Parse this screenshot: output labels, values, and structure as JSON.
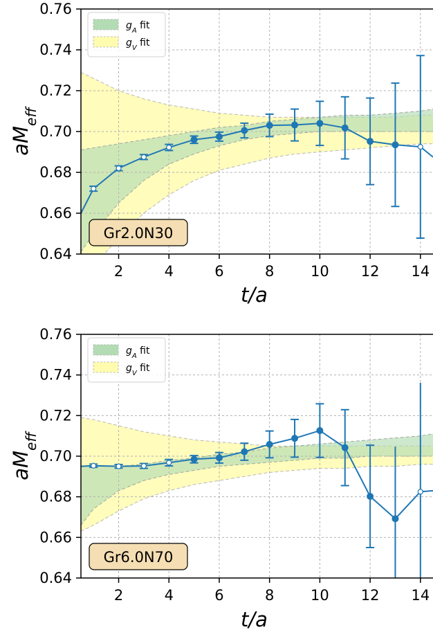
{
  "chart_data": [
    {
      "type": "line",
      "annotation": "Gr2.0N30",
      "xlabel": "t/a",
      "ylabel": "aM_eff",
      "xlim": [
        0.5,
        14.5
      ],
      "ylim": [
        0.64,
        0.76
      ],
      "xticks": [
        "2",
        "4",
        "6",
        "8",
        "10",
        "12",
        "14"
      ],
      "yticks": [
        "0.64",
        "0.66",
        "0.68",
        "0.70",
        "0.72",
        "0.74",
        "0.76"
      ],
      "grid": true,
      "legend_position": "top-left",
      "legend": [
        {
          "label_main": "g",
          "label_sub": "A",
          "label_rest": " fit",
          "color": "#b4dcb4"
        },
        {
          "label_main": "g",
          "label_sub": "V",
          "label_rest": " fit",
          "color": "#fffcb0"
        }
      ],
      "bands": [
        {
          "name": "gA",
          "x": [
            0.5,
            1,
            2,
            3,
            4,
            5,
            6,
            7,
            8,
            9,
            10,
            11,
            12,
            13,
            14,
            14.5
          ],
          "lower": [
            0.641,
            0.65,
            0.665,
            0.676,
            0.684,
            0.689,
            0.693,
            0.696,
            0.698,
            0.699,
            0.7,
            0.7,
            0.7,
            0.7,
            0.7,
            0.7
          ],
          "upper": [
            0.691,
            0.692,
            0.694,
            0.696,
            0.698,
            0.7,
            0.702,
            0.703,
            0.705,
            0.706,
            0.707,
            0.708,
            0.708,
            0.709,
            0.71,
            0.711
          ]
        },
        {
          "name": "gV",
          "x": [
            0.5,
            1,
            2,
            3,
            4,
            5,
            6,
            7,
            8,
            9,
            10,
            11,
            12,
            13,
            14,
            14.5
          ],
          "lower": [
            0.626,
            0.634,
            0.648,
            0.66,
            0.669,
            0.676,
            0.681,
            0.684,
            0.687,
            0.689,
            0.69,
            0.691,
            0.692,
            0.693,
            0.694,
            0.694
          ],
          "upper": [
            0.729,
            0.726,
            0.72,
            0.716,
            0.713,
            0.711,
            0.709,
            0.708,
            0.707,
            0.707,
            0.707,
            0.707,
            0.707,
            0.707,
            0.708,
            0.708
          ]
        }
      ],
      "series": [
        {
          "x": [
            0.5,
            1,
            2,
            3,
            4,
            5,
            6,
            7,
            8,
            9,
            10,
            11,
            12,
            13,
            14,
            14.5
          ],
          "y": [
            0.66,
            0.672,
            0.682,
            0.6875,
            0.6922,
            0.696,
            0.6975,
            0.7005,
            0.703,
            0.7032,
            0.704,
            0.7018,
            0.6952,
            0.6935,
            0.6925,
            0.6875
          ],
          "err": [
            null,
            0.0012,
            0.0012,
            0.0012,
            0.0015,
            0.0018,
            0.0022,
            0.0036,
            0.0055,
            0.0078,
            0.0108,
            0.0152,
            0.0212,
            0.0302,
            0.0447,
            null
          ],
          "filled": [
            null,
            false,
            false,
            false,
            false,
            true,
            true,
            true,
            true,
            true,
            true,
            true,
            true,
            true,
            false,
            null
          ],
          "capped": [
            false,
            true,
            true,
            true,
            true,
            true,
            true,
            true,
            true,
            true,
            true,
            true,
            true,
            true,
            true,
            false
          ]
        }
      ]
    },
    {
      "type": "line",
      "annotation": "Gr6.0N70",
      "xlabel": "t/a",
      "ylabel": "aM_eff",
      "xlim": [
        0.5,
        14.5
      ],
      "ylim": [
        0.64,
        0.76
      ],
      "xticks": [
        "2",
        "4",
        "6",
        "8",
        "10",
        "12",
        "14"
      ],
      "yticks": [
        "0.64",
        "0.66",
        "0.68",
        "0.70",
        "0.72",
        "0.74",
        "0.76"
      ],
      "grid": true,
      "legend_position": "top-left",
      "legend": [
        {
          "label_main": "g",
          "label_sub": "A",
          "label_rest": " fit",
          "color": "#b4dcb4"
        },
        {
          "label_main": "g",
          "label_sub": "V",
          "label_rest": " fit",
          "color": "#fffcb0"
        }
      ],
      "bands": [
        {
          "name": "gA",
          "x": [
            0.5,
            1,
            2,
            3,
            4,
            5,
            6,
            7,
            8,
            9,
            10,
            11,
            12,
            13,
            14,
            14.5
          ],
          "lower": [
            0.666,
            0.674,
            0.683,
            0.688,
            0.691,
            0.693,
            0.695,
            0.696,
            0.697,
            0.698,
            0.699,
            0.699,
            0.7,
            0.7,
            0.7,
            0.7
          ],
          "upper": [
            0.695,
            0.695,
            0.695,
            0.696,
            0.698,
            0.699,
            0.701,
            0.702,
            0.704,
            0.705,
            0.706,
            0.707,
            0.708,
            0.709,
            0.71,
            0.711
          ]
        },
        {
          "name": "gV",
          "x": [
            0.5,
            1,
            2,
            3,
            4,
            5,
            6,
            7,
            8,
            9,
            10,
            11,
            12,
            13,
            14,
            14.5
          ],
          "lower": [
            0.663,
            0.666,
            0.673,
            0.679,
            0.683,
            0.686,
            0.688,
            0.69,
            0.692,
            0.693,
            0.694,
            0.694,
            0.695,
            0.695,
            0.696,
            0.696
          ],
          "upper": [
            0.719,
            0.718,
            0.715,
            0.712,
            0.71,
            0.708,
            0.707,
            0.706,
            0.705,
            0.705,
            0.705,
            0.705,
            0.705,
            0.705,
            0.705,
            0.705
          ]
        }
      ],
      "series": [
        {
          "x": [
            0.5,
            1,
            2,
            3,
            4,
            5,
            6,
            7,
            8,
            9,
            10,
            11,
            12,
            13,
            14,
            14.5
          ],
          "y": [
            0.695,
            0.6953,
            0.695,
            0.6952,
            0.6968,
            0.6985,
            0.6992,
            0.7022,
            0.7058,
            0.7088,
            0.7126,
            0.7042,
            0.6802,
            0.6692,
            0.6825,
            0.683
          ],
          "err": [
            null,
            0.0008,
            0.0009,
            0.0012,
            0.0016,
            0.0018,
            0.0026,
            0.0042,
            0.0066,
            0.0093,
            0.0132,
            0.0187,
            0.0252,
            0.0355,
            0.0537,
            null
          ],
          "filled": [
            null,
            false,
            false,
            false,
            false,
            true,
            true,
            true,
            true,
            true,
            true,
            true,
            true,
            true,
            false,
            null
          ],
          "capped": [
            false,
            true,
            true,
            true,
            true,
            true,
            true,
            true,
            true,
            true,
            true,
            true,
            true,
            false,
            false,
            false
          ]
        }
      ]
    }
  ]
}
